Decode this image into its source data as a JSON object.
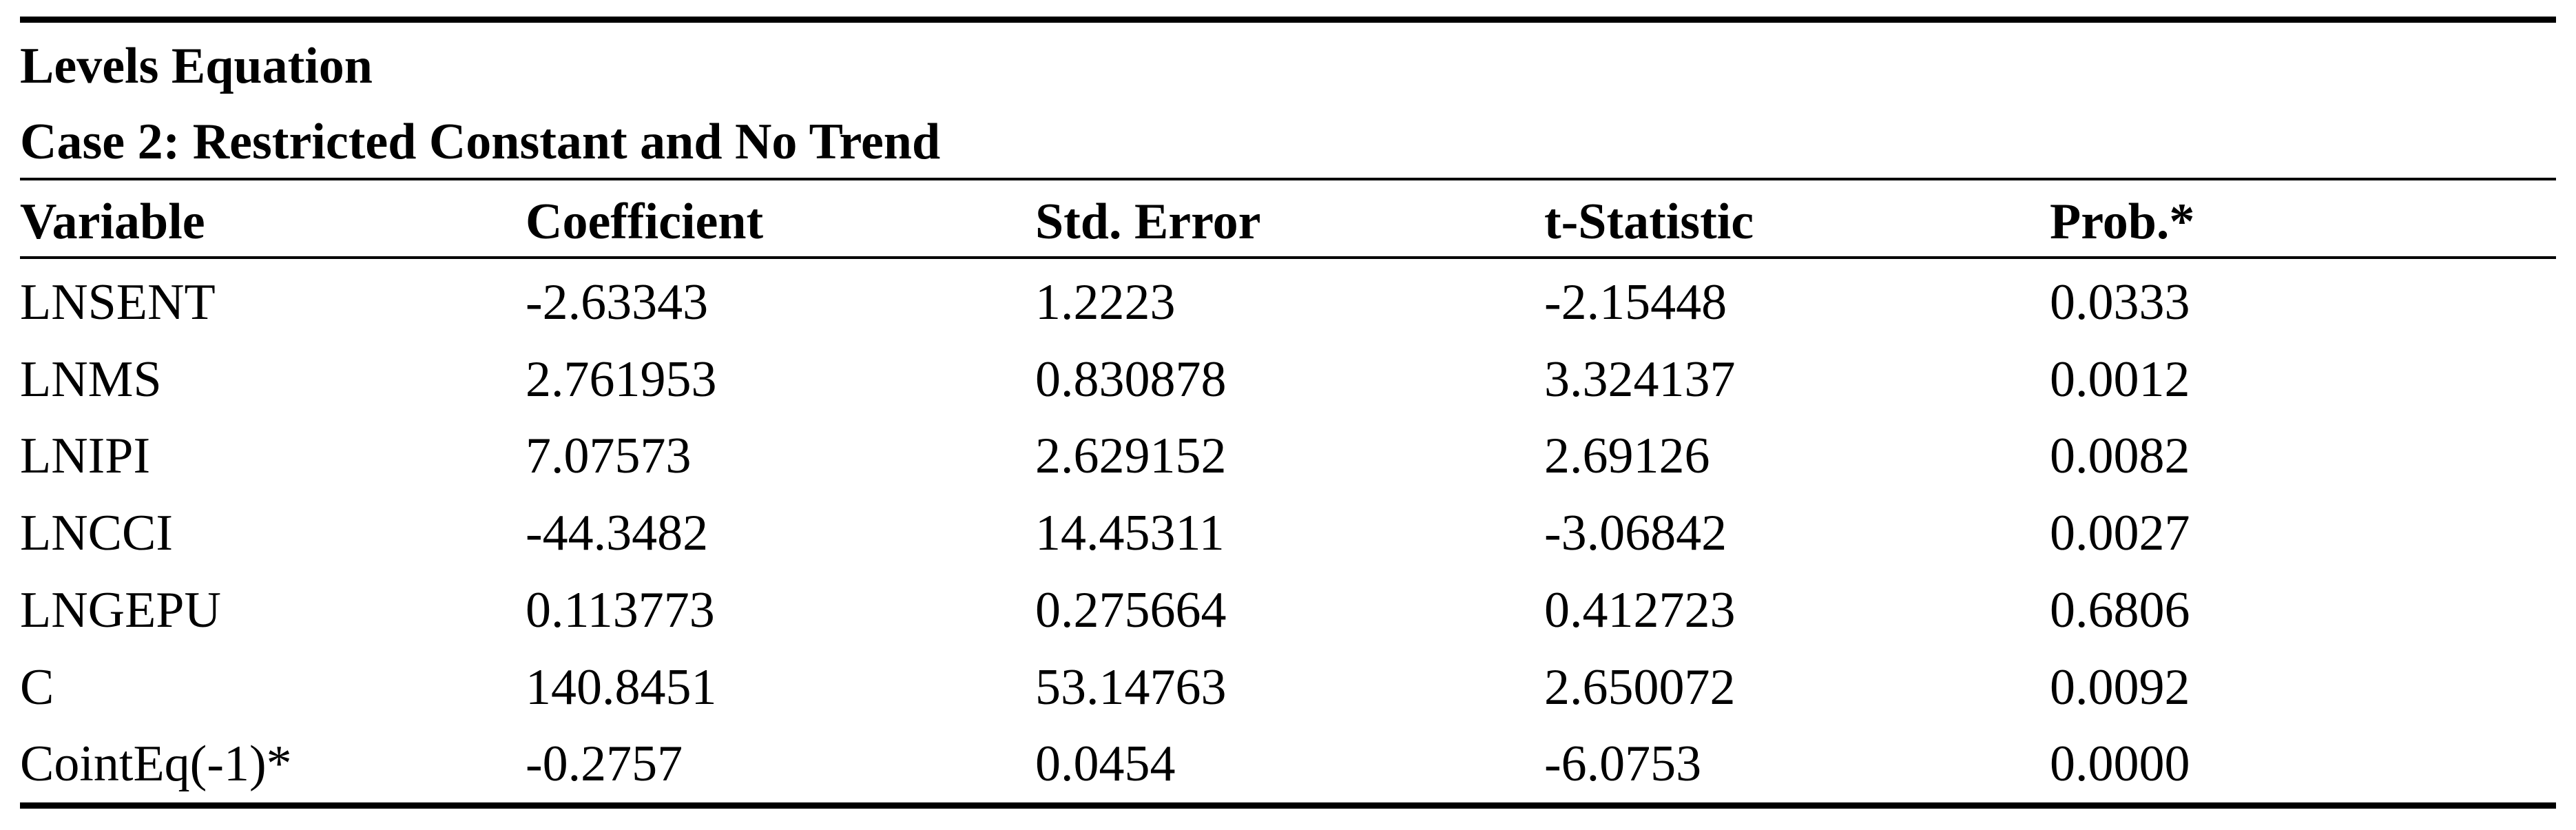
{
  "header": {
    "title": "Levels Equation",
    "subtitle": "Case 2: Restricted Constant and No Trend"
  },
  "table": {
    "columns": [
      "Variable",
      "Coefficient",
      "Std. Error",
      "t-Statistic",
      "Prob.*"
    ],
    "rows": [
      [
        "LNSENT",
        "-2.63343",
        "1.2223",
        "-2.15448",
        "0.0333"
      ],
      [
        "LNMS",
        "2.761953",
        "0.830878",
        "3.324137",
        "0.0012"
      ],
      [
        "LNIPI",
        "7.07573",
        "2.629152",
        "2.69126",
        "0.0082"
      ],
      [
        "LNCCI",
        "-44.3482",
        "14.45311",
        "-3.06842",
        "0.0027"
      ],
      [
        "LNGEPU",
        "0.113773",
        "0.275664",
        "0.412723",
        "0.6806"
      ],
      [
        "C",
        "140.8451",
        "53.14763",
        "2.650072",
        "0.0092"
      ],
      [
        "CointEq(-1)*",
        "-0.2757",
        "0.0454",
        "-6.0753",
        "0.0000"
      ]
    ]
  }
}
